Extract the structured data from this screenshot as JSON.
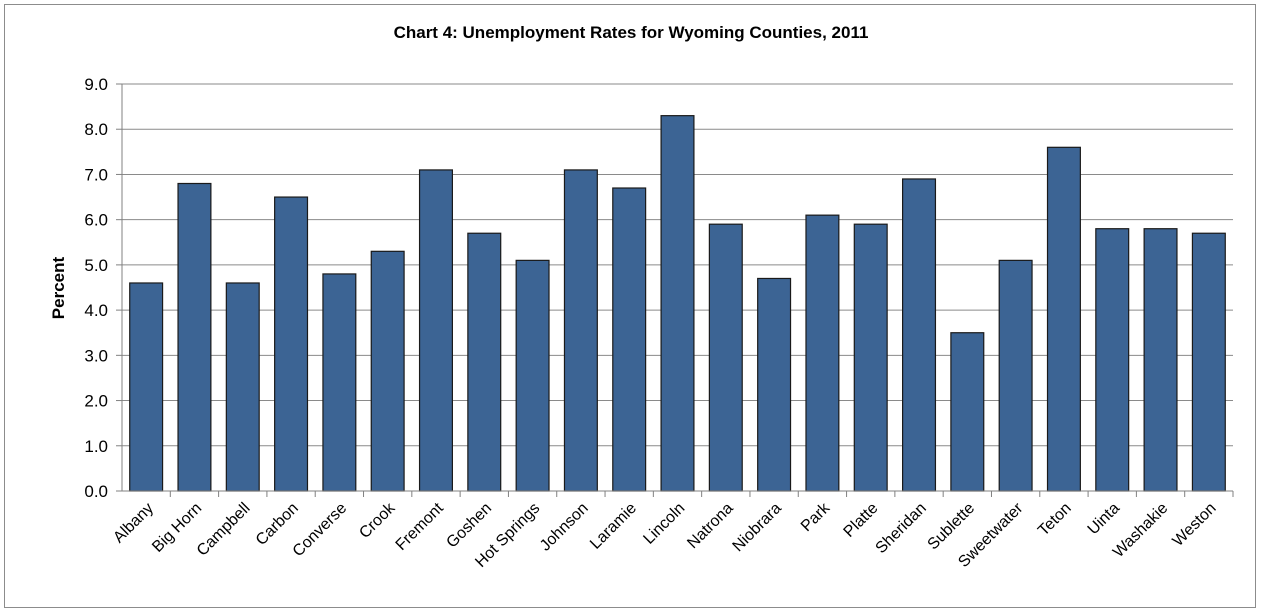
{
  "chart_data": {
    "type": "bar",
    "title": "Chart 4: Unemployment Rates for Wyoming Counties, 2011",
    "xlabel": "",
    "ylabel": "Percent",
    "ylim": [
      0,
      9
    ],
    "yticks": [
      "0.0",
      "1.0",
      "2.0",
      "3.0",
      "4.0",
      "5.0",
      "6.0",
      "7.0",
      "8.0",
      "9.0"
    ],
    "grid": true,
    "legend": "none",
    "categories": [
      "Albany",
      "Big Horn",
      "Campbell",
      "Carbon",
      "Converse",
      "Crook",
      "Fremont",
      "Goshen",
      "Hot Springs",
      "Johnson",
      "Laramie",
      "Lincoln",
      "Natrona",
      "Niobrara",
      "Park",
      "Platte",
      "Sheridan",
      "Sublette",
      "Sweetwater",
      "Teton",
      "Uinta",
      "Washakie",
      "Weston"
    ],
    "values": [
      4.6,
      6.8,
      4.6,
      6.5,
      4.8,
      5.3,
      7.1,
      5.7,
      5.1,
      7.1,
      6.7,
      8.3,
      5.9,
      4.7,
      6.1,
      5.9,
      6.9,
      3.5,
      5.1,
      7.6,
      5.8,
      5.8,
      5.7
    ],
    "bar_color": "#3c6494",
    "grid_color": "#8a8a8a"
  }
}
